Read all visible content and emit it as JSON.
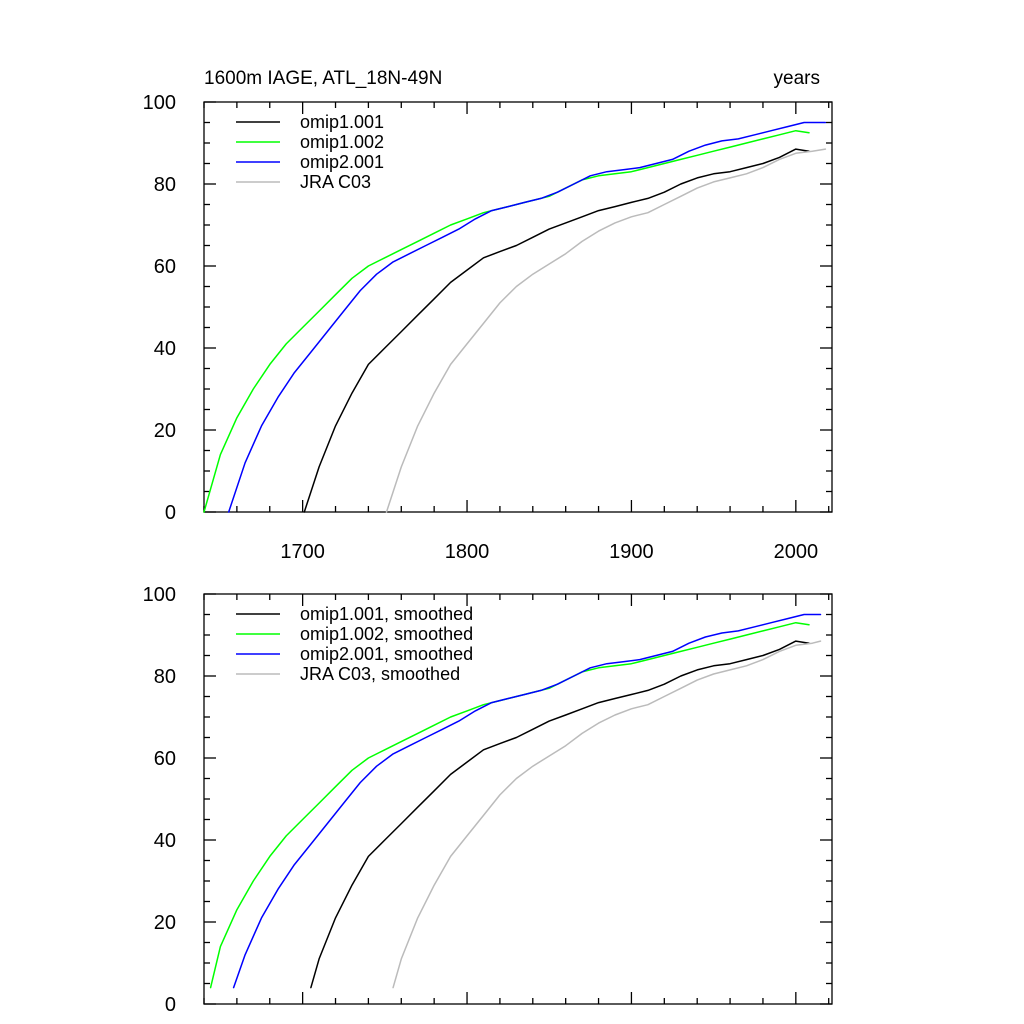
{
  "chart_data": [
    {
      "type": "line",
      "title_left": "1600m IAGE, ATL_18N-49N",
      "title_right": "years",
      "xlim": [
        1640,
        2022
      ],
      "ylim": [
        0,
        100
      ],
      "x_ticks": [
        1700,
        1800,
        1900,
        2000
      ],
      "y_ticks": [
        0,
        20,
        40,
        60,
        80,
        100
      ],
      "legend_position": "top-left",
      "series": [
        {
          "name": "omip1.001",
          "color": "#000000",
          "points": [
            [
              1701,
              0
            ],
            [
              1710,
              11
            ],
            [
              1720,
              21
            ],
            [
              1730,
              29
            ],
            [
              1740,
              36
            ],
            [
              1750,
              40
            ],
            [
              1760,
              44
            ],
            [
              1770,
              48
            ],
            [
              1780,
              52
            ],
            [
              1790,
              56
            ],
            [
              1800,
              59
            ],
            [
              1810,
              62
            ],
            [
              1820,
              63.5
            ],
            [
              1830,
              65
            ],
            [
              1840,
              67
            ],
            [
              1850,
              69
            ],
            [
              1860,
              70.5
            ],
            [
              1870,
              72
            ],
            [
              1880,
              73.5
            ],
            [
              1890,
              74.5
            ],
            [
              1900,
              75.5
            ],
            [
              1910,
              76.5
            ],
            [
              1920,
              78
            ],
            [
              1930,
              80
            ],
            [
              1940,
              81.5
            ],
            [
              1950,
              82.5
            ],
            [
              1960,
              83
            ],
            [
              1970,
              84
            ],
            [
              1980,
              85
            ],
            [
              1990,
              86.5
            ],
            [
              2000,
              88.5
            ],
            [
              2008,
              88
            ]
          ]
        },
        {
          "name": "omip1.002",
          "color": "#00ff00",
          "points": [
            [
              1640,
              0
            ],
            [
              1650,
              14
            ],
            [
              1660,
              23
            ],
            [
              1670,
              30
            ],
            [
              1680,
              36
            ],
            [
              1690,
              41
            ],
            [
              1700,
              45
            ],
            [
              1710,
              49
            ],
            [
              1720,
              53
            ],
            [
              1730,
              57
            ],
            [
              1740,
              60
            ],
            [
              1750,
              62
            ],
            [
              1760,
              64
            ],
            [
              1770,
              66
            ],
            [
              1780,
              68
            ],
            [
              1790,
              70
            ],
            [
              1800,
              71.5
            ],
            [
              1810,
              73
            ],
            [
              1820,
              74
            ],
            [
              1830,
              75
            ],
            [
              1840,
              76
            ],
            [
              1850,
              77
            ],
            [
              1860,
              79
            ],
            [
              1870,
              81
            ],
            [
              1880,
              82
            ],
            [
              1890,
              82.5
            ],
            [
              1900,
              83
            ],
            [
              1910,
              84
            ],
            [
              1920,
              85
            ],
            [
              1930,
              86
            ],
            [
              1940,
              87
            ],
            [
              1950,
              88
            ],
            [
              1960,
              89
            ],
            [
              1970,
              90
            ],
            [
              1980,
              91
            ],
            [
              1990,
              92
            ],
            [
              2000,
              93
            ],
            [
              2008,
              92.5
            ]
          ]
        },
        {
          "name": "omip2.001",
          "color": "#0000ff",
          "points": [
            [
              1655,
              0
            ],
            [
              1665,
              12
            ],
            [
              1675,
              21
            ],
            [
              1685,
              28
            ],
            [
              1695,
              34
            ],
            [
              1705,
              39
            ],
            [
              1715,
              44
            ],
            [
              1725,
              49
            ],
            [
              1735,
              54
            ],
            [
              1745,
              58
            ],
            [
              1755,
              61
            ],
            [
              1765,
              63
            ],
            [
              1775,
              65
            ],
            [
              1785,
              67
            ],
            [
              1795,
              69
            ],
            [
              1805,
              71.5
            ],
            [
              1815,
              73.5
            ],
            [
              1825,
              74.5
            ],
            [
              1835,
              75.5
            ],
            [
              1845,
              76.5
            ],
            [
              1855,
              78
            ],
            [
              1865,
              80
            ],
            [
              1875,
              82
            ],
            [
              1885,
              83
            ],
            [
              1895,
              83.5
            ],
            [
              1905,
              84
            ],
            [
              1915,
              85
            ],
            [
              1925,
              86
            ],
            [
              1935,
              88
            ],
            [
              1945,
              89.5
            ],
            [
              1955,
              90.5
            ],
            [
              1965,
              91
            ],
            [
              1975,
              92
            ],
            [
              1985,
              93
            ],
            [
              1995,
              94
            ],
            [
              2005,
              95
            ],
            [
              2018,
              95
            ]
          ]
        },
        {
          "name": "JRA C03",
          "color": "#bbbbbb",
          "points": [
            [
              1751,
              0
            ],
            [
              1760,
              11
            ],
            [
              1770,
              21
            ],
            [
              1780,
              29
            ],
            [
              1790,
              36
            ],
            [
              1800,
              41
            ],
            [
              1810,
              46
            ],
            [
              1820,
              51
            ],
            [
              1830,
              55
            ],
            [
              1840,
              58
            ],
            [
              1850,
              60.5
            ],
            [
              1860,
              63
            ],
            [
              1870,
              66
            ],
            [
              1880,
              68.5
            ],
            [
              1890,
              70.5
            ],
            [
              1900,
              72
            ],
            [
              1910,
              73
            ],
            [
              1920,
              75
            ],
            [
              1930,
              77
            ],
            [
              1940,
              79
            ],
            [
              1950,
              80.5
            ],
            [
              1960,
              81.5
            ],
            [
              1970,
              82.5
            ],
            [
              1980,
              84
            ],
            [
              1990,
              86
            ],
            [
              2000,
              87.5
            ],
            [
              2010,
              88
            ],
            [
              2018,
              88.5
            ]
          ]
        }
      ]
    },
    {
      "type": "line",
      "title_left": "",
      "title_right": "",
      "xlim": [
        1640,
        2022
      ],
      "ylim": [
        0,
        100
      ],
      "x_ticks": [
        1700,
        1800,
        1900,
        2000
      ],
      "y_ticks": [
        0,
        20,
        40,
        60,
        80,
        100
      ],
      "legend_position": "top-left",
      "series": [
        {
          "name": "omip1.001, smoothed",
          "color": "#000000",
          "points": [
            [
              1705,
              4
            ],
            [
              1710,
              11
            ],
            [
              1720,
              21
            ],
            [
              1730,
              29
            ],
            [
              1740,
              36
            ],
            [
              1750,
              40
            ],
            [
              1760,
              44
            ],
            [
              1770,
              48
            ],
            [
              1780,
              52
            ],
            [
              1790,
              56
            ],
            [
              1800,
              59
            ],
            [
              1810,
              62
            ],
            [
              1820,
              63.5
            ],
            [
              1830,
              65
            ],
            [
              1840,
              67
            ],
            [
              1850,
              69
            ],
            [
              1860,
              70.5
            ],
            [
              1870,
              72
            ],
            [
              1880,
              73.5
            ],
            [
              1890,
              74.5
            ],
            [
              1900,
              75.5
            ],
            [
              1910,
              76.5
            ],
            [
              1920,
              78
            ],
            [
              1930,
              80
            ],
            [
              1940,
              81.5
            ],
            [
              1950,
              82.5
            ],
            [
              1960,
              83
            ],
            [
              1970,
              84
            ],
            [
              1980,
              85
            ],
            [
              1990,
              86.5
            ],
            [
              2000,
              88.5
            ],
            [
              2008,
              88
            ]
          ]
        },
        {
          "name": "omip1.002, smoothed",
          "color": "#00ff00",
          "points": [
            [
              1644,
              4
            ],
            [
              1650,
              14
            ],
            [
              1660,
              23
            ],
            [
              1670,
              30
            ],
            [
              1680,
              36
            ],
            [
              1690,
              41
            ],
            [
              1700,
              45
            ],
            [
              1710,
              49
            ],
            [
              1720,
              53
            ],
            [
              1730,
              57
            ],
            [
              1740,
              60
            ],
            [
              1750,
              62
            ],
            [
              1760,
              64
            ],
            [
              1770,
              66
            ],
            [
              1780,
              68
            ],
            [
              1790,
              70
            ],
            [
              1800,
              71.5
            ],
            [
              1810,
              73
            ],
            [
              1820,
              74
            ],
            [
              1830,
              75
            ],
            [
              1840,
              76
            ],
            [
              1850,
              77
            ],
            [
              1860,
              79
            ],
            [
              1870,
              81
            ],
            [
              1880,
              82
            ],
            [
              1890,
              82.5
            ],
            [
              1900,
              83
            ],
            [
              1910,
              84
            ],
            [
              1920,
              85
            ],
            [
              1930,
              86
            ],
            [
              1940,
              87
            ],
            [
              1950,
              88
            ],
            [
              1960,
              89
            ],
            [
              1970,
              90
            ],
            [
              1980,
              91
            ],
            [
              1990,
              92
            ],
            [
              2000,
              93
            ],
            [
              2008,
              92.5
            ]
          ]
        },
        {
          "name": "omip2.001, smoothed",
          "color": "#0000ff",
          "points": [
            [
              1658,
              4
            ],
            [
              1665,
              12
            ],
            [
              1675,
              21
            ],
            [
              1685,
              28
            ],
            [
              1695,
              34
            ],
            [
              1705,
              39
            ],
            [
              1715,
              44
            ],
            [
              1725,
              49
            ],
            [
              1735,
              54
            ],
            [
              1745,
              58
            ],
            [
              1755,
              61
            ],
            [
              1765,
              63
            ],
            [
              1775,
              65
            ],
            [
              1785,
              67
            ],
            [
              1795,
              69
            ],
            [
              1805,
              71.5
            ],
            [
              1815,
              73.5
            ],
            [
              1825,
              74.5
            ],
            [
              1835,
              75.5
            ],
            [
              1845,
              76.5
            ],
            [
              1855,
              78
            ],
            [
              1865,
              80
            ],
            [
              1875,
              82
            ],
            [
              1885,
              83
            ],
            [
              1895,
              83.5
            ],
            [
              1905,
              84
            ],
            [
              1915,
              85
            ],
            [
              1925,
              86
            ],
            [
              1935,
              88
            ],
            [
              1945,
              89.5
            ],
            [
              1955,
              90.5
            ],
            [
              1965,
              91
            ],
            [
              1975,
              92
            ],
            [
              1985,
              93
            ],
            [
              1995,
              94
            ],
            [
              2005,
              95
            ],
            [
              2015,
              95
            ]
          ]
        },
        {
          "name": "JRA C03, smoothed",
          "color": "#bbbbbb",
          "points": [
            [
              1755,
              4
            ],
            [
              1760,
              11
            ],
            [
              1770,
              21
            ],
            [
              1780,
              29
            ],
            [
              1790,
              36
            ],
            [
              1800,
              41
            ],
            [
              1810,
              46
            ],
            [
              1820,
              51
            ],
            [
              1830,
              55
            ],
            [
              1840,
              58
            ],
            [
              1850,
              60.5
            ],
            [
              1860,
              63
            ],
            [
              1870,
              66
            ],
            [
              1880,
              68.5
            ],
            [
              1890,
              70.5
            ],
            [
              1900,
              72
            ],
            [
              1910,
              73
            ],
            [
              1920,
              75
            ],
            [
              1930,
              77
            ],
            [
              1940,
              79
            ],
            [
              1950,
              80.5
            ],
            [
              1960,
              81.5
            ],
            [
              1970,
              82.5
            ],
            [
              1980,
              84
            ],
            [
              1990,
              86
            ],
            [
              2000,
              87.5
            ],
            [
              2010,
              88
            ],
            [
              2015,
              88.5
            ]
          ]
        }
      ]
    }
  ]
}
